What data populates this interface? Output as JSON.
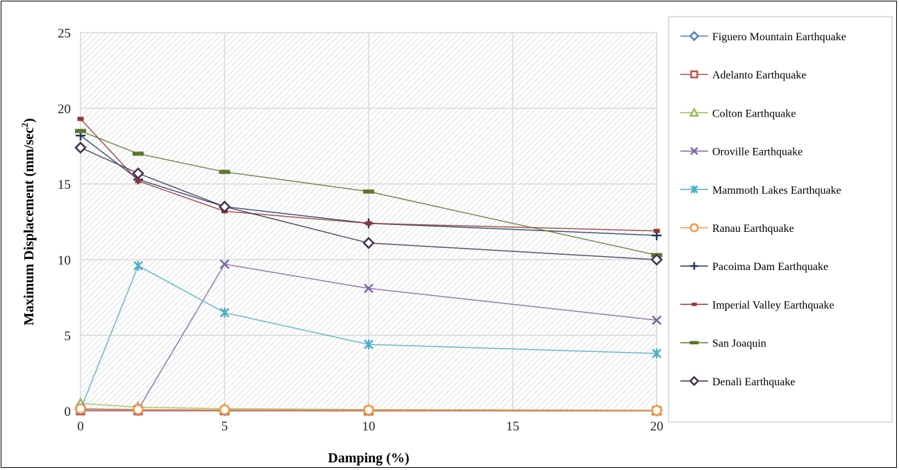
{
  "chart_data": {
    "type": "line",
    "xlabel": "Damping (%)",
    "ylabel": "Maximum Displacement (mm/sec²)",
    "ylabel_parts": {
      "main": "Maximum Displacement (mm/sec",
      "sup": "2",
      "close": ")"
    },
    "xlim": [
      0,
      20
    ],
    "ylim": [
      0,
      25
    ],
    "x_ticks": [
      0,
      5,
      10,
      15,
      20
    ],
    "y_ticks": [
      0,
      5,
      10,
      15,
      20,
      25
    ],
    "grid": true,
    "legend_position": "right",
    "series": [
      {
        "name": "Figuero Mountain Earthquake",
        "color": "#4f81bd",
        "marker": "diamond",
        "points": [
          [
            0,
            0.1
          ],
          [
            2,
            0.06
          ],
          [
            5,
            0.05
          ],
          [
            10,
            0.04
          ],
          [
            20,
            0.03
          ]
        ]
      },
      {
        "name": "Adelanto Earthquake",
        "color": "#c0504d",
        "marker": "square",
        "points": [
          [
            0,
            0.02
          ],
          [
            2,
            0.02
          ],
          [
            5,
            0.02
          ],
          [
            10,
            0.01
          ],
          [
            20,
            0.01
          ]
        ]
      },
      {
        "name": "Colton Earthquake",
        "color": "#9bbb59",
        "marker": "triangle",
        "points": [
          [
            0,
            0.5
          ],
          [
            2,
            0.25
          ],
          [
            5,
            0.15
          ],
          [
            10,
            0.1
          ],
          [
            20,
            0.05
          ]
        ]
      },
      {
        "name": "Oroville Earthquake",
        "color": "#8064a2",
        "marker": "x",
        "points": [
          [
            0,
            0.15
          ],
          [
            2,
            0.1
          ],
          [
            5,
            9.7
          ],
          [
            10,
            8.1
          ],
          [
            20,
            6.0
          ]
        ]
      },
      {
        "name": "Mammoth Lakes Earthquake",
        "color": "#4bacc6",
        "marker": "star",
        "points": [
          [
            0,
            0.1
          ],
          [
            2,
            9.6
          ],
          [
            5,
            6.5
          ],
          [
            10,
            4.4
          ],
          [
            20,
            3.8
          ]
        ]
      },
      {
        "name": "Ranau Earthquake",
        "color": "#f79646",
        "marker": "circle",
        "points": [
          [
            0,
            0.15
          ],
          [
            2,
            0.1
          ],
          [
            5,
            0.08
          ],
          [
            10,
            0.06
          ],
          [
            20,
            0.04
          ]
        ]
      },
      {
        "name": "Pacoima Dam Earthquake",
        "color": "#1f3864",
        "marker": "plus",
        "points": [
          [
            0,
            18.2
          ],
          [
            2,
            15.3
          ],
          [
            5,
            13.5
          ],
          [
            10,
            12.4
          ],
          [
            20,
            11.6
          ]
        ]
      },
      {
        "name": "Imperial Valley Earthquake",
        "color": "#943634",
        "marker": "dash",
        "points": [
          [
            0,
            19.3
          ],
          [
            2,
            15.2
          ],
          [
            5,
            13.2
          ],
          [
            10,
            12.4
          ],
          [
            20,
            11.9
          ]
        ]
      },
      {
        "name": "San Joaquin",
        "color": "#5f7530",
        "marker": "bar",
        "points": [
          [
            0,
            18.5
          ],
          [
            2,
            17.0
          ],
          [
            5,
            15.8
          ],
          [
            10,
            14.5
          ],
          [
            20,
            10.3
          ]
        ]
      },
      {
        "name": "Denali Earthquake",
        "color": "#403151",
        "marker": "diamond",
        "points": [
          [
            0,
            17.4
          ],
          [
            2,
            15.7
          ],
          [
            5,
            13.5
          ],
          [
            10,
            11.1
          ],
          [
            20,
            10.0
          ]
        ]
      }
    ]
  }
}
